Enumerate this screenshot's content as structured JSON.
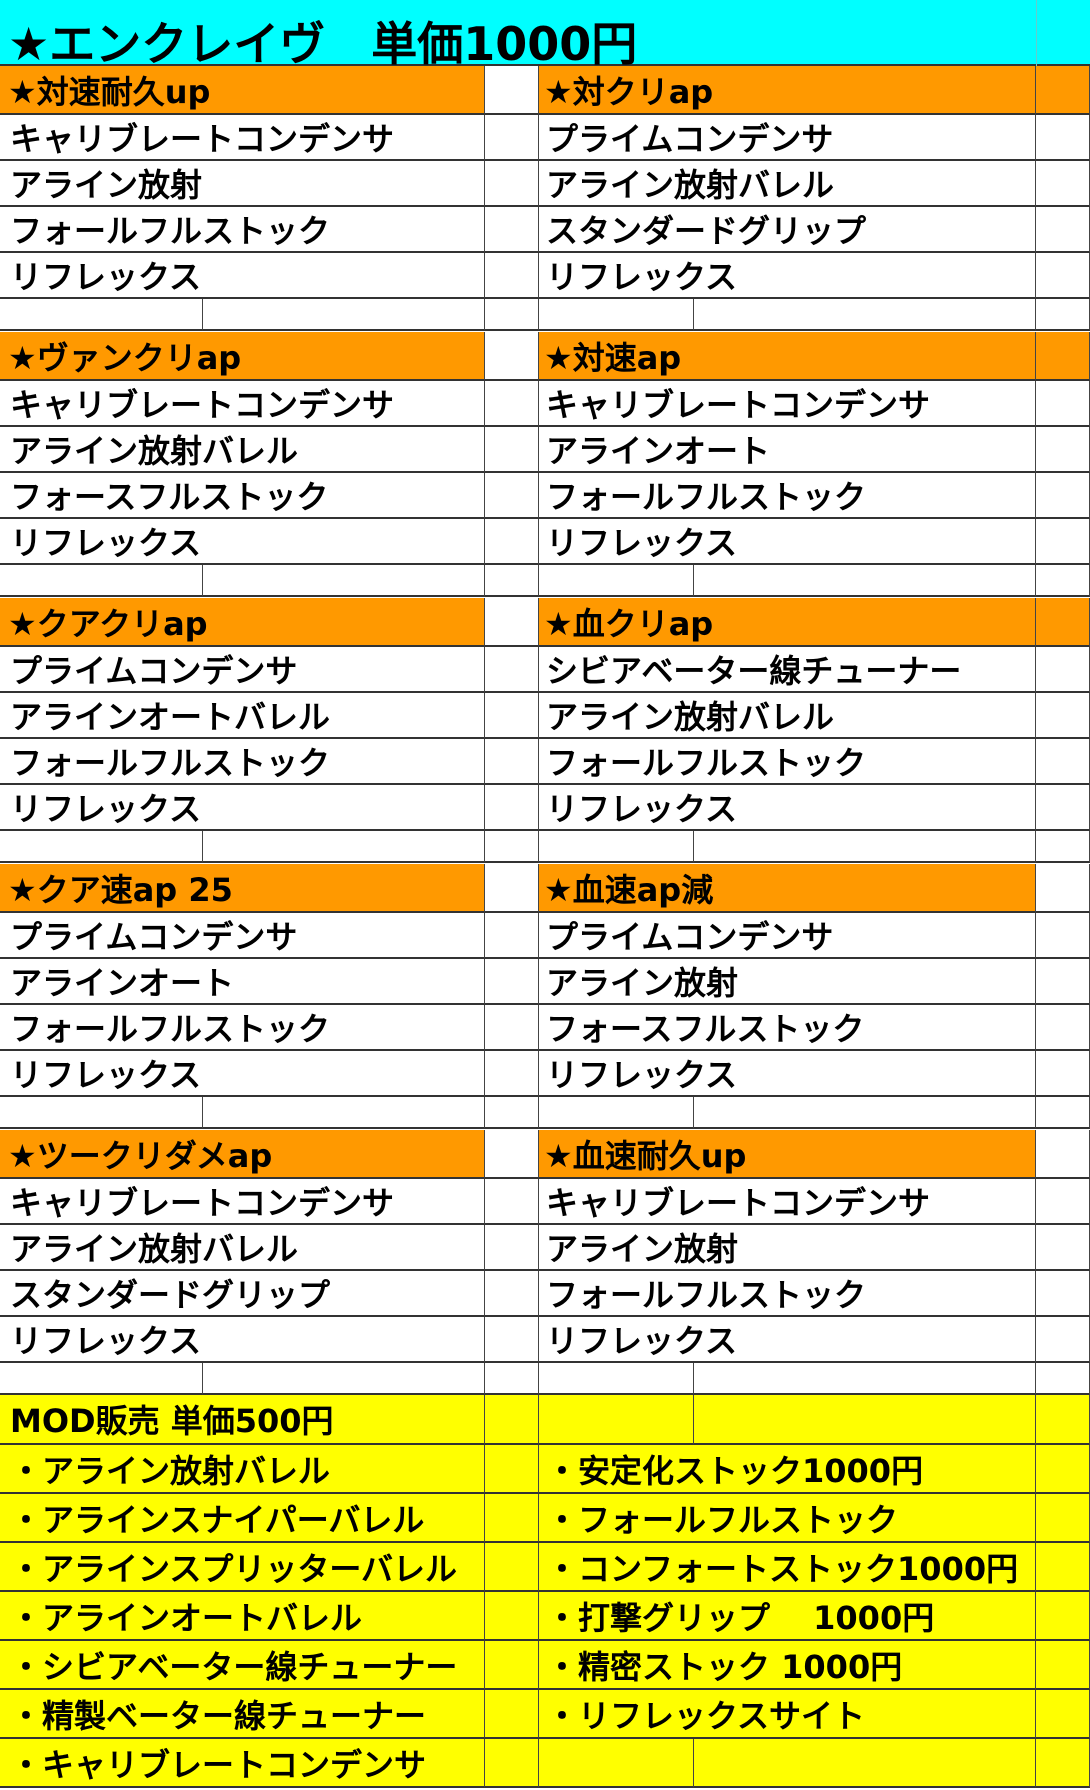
{
  "title": "★エンクレイヴ　単価1000円",
  "colors": {
    "title_bg": "#00ffff",
    "header_bg": "#ff9900",
    "mod_bg": "#ffff00"
  },
  "sections": [
    {
      "left": {
        "header": "★対速耐久up",
        "items": [
          "キャリブレートコンデンサ",
          "アライン放射",
          "フォールフルストック",
          "リフレックス"
        ]
      },
      "right": {
        "header": "★対クリap",
        "items": [
          "プライムコンデンサ",
          "アライン放射バレル",
          "スタンダードグリップ",
          "リフレックス"
        ]
      }
    },
    {
      "left": {
        "header": "★ヴァンクリap",
        "items": [
          "キャリブレートコンデンサ",
          "アライン放射バレル",
          "フォースフルストック",
          "リフレックス"
        ]
      },
      "right": {
        "header": "★対速ap",
        "items": [
          "キャリブレートコンデンサ",
          "アラインオート",
          "フォールフルストック",
          "リフレックス"
        ]
      }
    },
    {
      "left": {
        "header": "★クアクリap",
        "items": [
          "プライムコンデンサ",
          "アラインオートバレル",
          "フォールフルストック",
          "リフレックス"
        ]
      },
      "right": {
        "header": "★血クリap",
        "items": [
          "シビアベーター線チューナー",
          "アライン放射バレル",
          "フォールフルストック",
          "リフレックス"
        ]
      }
    },
    {
      "left": {
        "header": "★クア速ap 25",
        "items": [
          "プライムコンデンサ",
          "アラインオート",
          "フォールフルストック",
          "リフレックス"
        ]
      },
      "right": {
        "header": "★血速ap減",
        "items": [
          "プライムコンデンサ",
          "アライン放射",
          "フォースフルストック",
          "リフレックス"
        ]
      }
    },
    {
      "left": {
        "header": "★ツークリダメap",
        "items": [
          "キャリブレートコンデンサ",
          "アライン放射バレル",
          "スタンダードグリップ",
          "リフレックス"
        ]
      },
      "right": {
        "header": "★血速耐久up",
        "items": [
          "キャリブレートコンデンサ",
          "アライン放射",
          "フォールフルストック",
          "リフレックス"
        ]
      }
    }
  ],
  "mod": {
    "header": "MOD販売 単価500円",
    "left": [
      "・アライン放射バレル",
      "・アラインスナイパーバレル",
      "・アラインスプリッターバレル",
      "・アラインオートバレル",
      "・シビアベーター線チューナー",
      "・精製ベーター線チューナー",
      "・キャリブレートコンデンサ"
    ],
    "right": [
      "・安定化ストック1000円",
      "・フォールフルストック",
      "・コンフォートストック1000円",
      "・打撃グリップ　 1000円",
      "・精密ストック 1000円",
      "・リフレックスサイト",
      ""
    ]
  }
}
